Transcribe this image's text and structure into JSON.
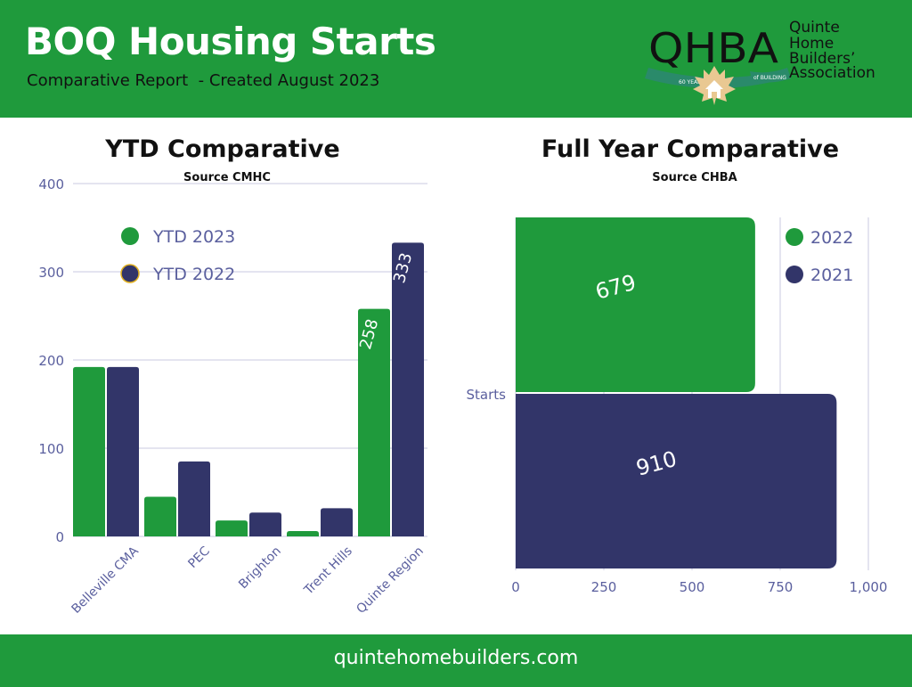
{
  "header": {
    "title": "BOQ Housing Starts",
    "subtitle": "Comparative Report  - Created August 2023"
  },
  "logo": {
    "monogram": "QHBA",
    "name_lines": [
      "Quinte",
      "Home",
      "Builders’",
      "Association"
    ],
    "ribbon_left": "60 YEARS",
    "ribbon_right": "of BUILDING",
    "icon": "maple-leaf-house-icon"
  },
  "footer": {
    "url": "quintehomebuilders.com"
  },
  "colors": {
    "green": "#1f9a3c",
    "navy": "#323569",
    "grid": "#c9c9e0",
    "axis_text": "#5a5f9e"
  },
  "chart_data": [
    {
      "type": "bar",
      "title": "YTD Comparative",
      "subtitle": "Source CMHC",
      "categories": [
        "Belleville CMA",
        "PEC",
        "Brighton",
        "Trent Hills",
        "Quinte Region"
      ],
      "series": [
        {
          "name": "YTD 2023",
          "color": "#1f9a3c",
          "values": [
            192,
            45,
            18,
            6,
            258
          ],
          "labels": [
            "",
            "",
            "",
            "",
            "258"
          ]
        },
        {
          "name": "YTD 2022",
          "color": "#323569",
          "values": [
            192,
            85,
            27,
            32,
            333
          ],
          "labels": [
            "",
            "",
            "",
            "",
            "333"
          ]
        }
      ],
      "ylim": [
        0,
        400
      ],
      "yticks": [
        0,
        100,
        200,
        300,
        400
      ],
      "grid": true,
      "legend": "top-left"
    },
    {
      "type": "bar",
      "orientation": "horizontal",
      "title": "Full Year Comparative",
      "subtitle": "Source CHBA",
      "categories": [
        "Starts"
      ],
      "series": [
        {
          "name": "2022",
          "color": "#1f9a3c",
          "values": [
            679
          ],
          "labels": [
            "679"
          ]
        },
        {
          "name": "2021",
          "color": "#323569",
          "values": [
            910
          ],
          "labels": [
            "910"
          ]
        }
      ],
      "xlim": [
        0,
        1000
      ],
      "xticks": [
        "0",
        "250",
        "500",
        "750",
        "1,000"
      ],
      "grid": true,
      "legend": "top-right"
    }
  ]
}
